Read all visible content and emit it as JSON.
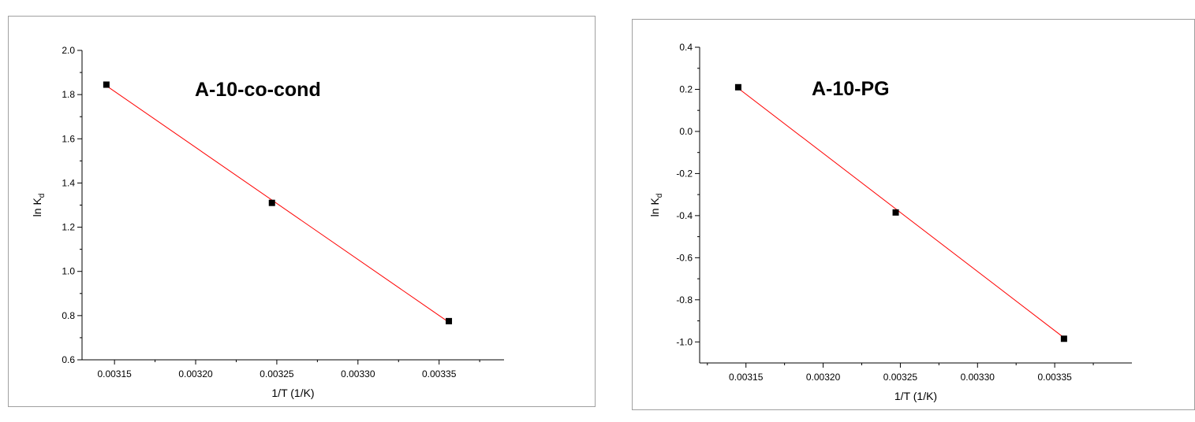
{
  "chart_data": [
    {
      "type": "scatter",
      "title": "A-10-co-cond",
      "xlabel": "1/T (1/K)",
      "ylabel_main": "ln K",
      "ylabel_sub": "d",
      "xlim": [
        0.00313,
        0.00339
      ],
      "ylim": [
        0.6,
        2.0
      ],
      "xticks": [
        0.00315,
        0.0032,
        0.00325,
        0.0033,
        0.00335
      ],
      "xtick_labels": [
        "0.00315",
        "0.00320",
        "0.00325",
        "0.00330",
        "0.00335"
      ],
      "yticks": [
        0.6,
        0.8,
        1.0,
        1.2,
        1.4,
        1.6,
        1.8,
        2.0
      ],
      "ytick_labels": [
        "0.6",
        "0.8",
        "1.0",
        "1.2",
        "1.4",
        "1.6",
        "1.8",
        "2.0"
      ],
      "x": [
        0.003145,
        0.003247,
        0.003356
      ],
      "y": [
        1.845,
        1.31,
        0.775
      ],
      "fit_line": {
        "x": [
          0.003145,
          0.003356
        ],
        "y": [
          1.84,
          0.77
        ],
        "color": "#ff0000"
      },
      "marker_color": "#000000"
    },
    {
      "type": "scatter",
      "title": "A-10-PG",
      "xlabel": "1/T (1/K)",
      "ylabel_main": "ln K",
      "ylabel_sub": "d",
      "xlim": [
        0.00312,
        0.0034
      ],
      "ylim": [
        -1.1,
        0.4
      ],
      "xticks": [
        0.00315,
        0.0032,
        0.00325,
        0.0033,
        0.00335
      ],
      "xtick_labels": [
        "0.00315",
        "0.00320",
        "0.00325",
        "0.00330",
        "0.00335"
      ],
      "yticks": [
        -1.0,
        -0.8,
        -0.6,
        -0.4,
        -0.2,
        0.0,
        0.2,
        0.4
      ],
      "ytick_labels": [
        "-1.0",
        "-0.8",
        "-0.6",
        "-0.4",
        "-0.2",
        "0.0",
        "0.2",
        "0.4"
      ],
      "x": [
        0.003145,
        0.003247,
        0.003356
      ],
      "y": [
        0.21,
        -0.385,
        -0.985
      ],
      "fit_line": {
        "x": [
          0.003145,
          0.003356
        ],
        "y": [
          0.205,
          -0.98
        ],
        "color": "#ff0000"
      },
      "marker_color": "#000000"
    }
  ]
}
